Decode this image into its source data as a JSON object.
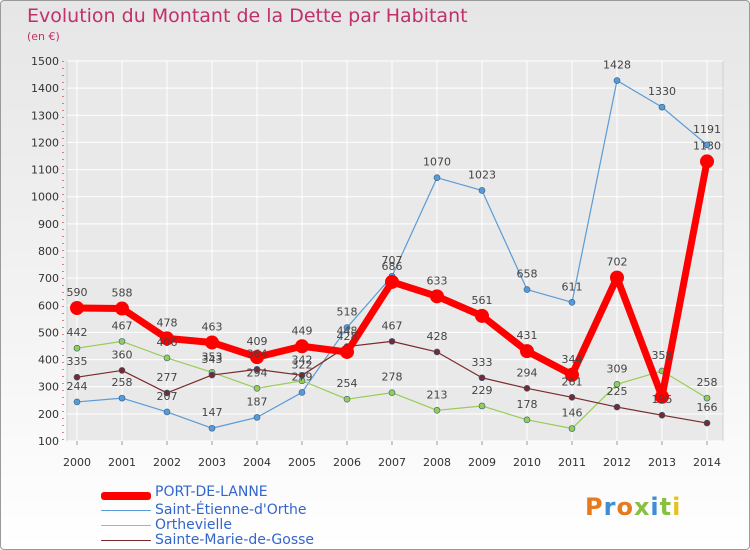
{
  "title": "Evolution du Montant de la Dette par Habitant",
  "subtitle": "(en €)",
  "logo": "Proxiti",
  "colors": {
    "title": "#c0306a",
    "legend_text": "#3366cc",
    "axis_text": "#333333",
    "grid": "#ffffff"
  },
  "chart_data": {
    "type": "line",
    "title": "Evolution du Montant de la Dette par Habitant",
    "ylabel": "(en €)",
    "xlabel": "",
    "x": [
      "2000",
      "2001",
      "2002",
      "2003",
      "2004",
      "2005",
      "2006",
      "2007",
      "2008",
      "2009",
      "2010",
      "2011",
      "2012",
      "2013",
      "2014"
    ],
    "ylim": [
      100,
      1500
    ],
    "yticks": [
      100,
      200,
      300,
      400,
      500,
      600,
      700,
      800,
      900,
      1000,
      1100,
      1200,
      1300,
      1400,
      1500
    ],
    "grid": true,
    "legend_position": "bottom-left",
    "series": [
      {
        "name": "PORT-DE-LANNE",
        "color": "#ff0000",
        "values": [
          590,
          588,
          478,
          463,
          409,
          449,
          428,
          686,
          633,
          561,
          431,
          344,
          702,
          263,
          1130
        ],
        "labels": [
          "590",
          "588",
          "478",
          "463",
          "409",
          "449",
          "428",
          "686",
          "633",
          "561",
          "431",
          "344",
          "702",
          "",
          "1130"
        ]
      },
      {
        "name": "Saint-Étienne-d'Orthe",
        "color": "#5b9bd5",
        "values": [
          244,
          258,
          207,
          147,
          187,
          279,
          518,
          707,
          1070,
          1023,
          658,
          611,
          1428,
          1330,
          1191
        ],
        "labels": [
          "244",
          "258",
          "207",
          "147",
          "187",
          "279",
          "518",
          "707",
          "1070",
          "1023",
          "658",
          "611",
          "1428",
          "1330",
          "1191"
        ]
      },
      {
        "name": "Orthevielle",
        "color": "#99cc55",
        "values": [
          442,
          467,
          406,
          353,
          294,
          322,
          254,
          278,
          213,
          229,
          178,
          146,
          309,
          358,
          258
        ],
        "labels": [
          "442",
          "467",
          "406",
          "353",
          "294",
          "322",
          "254",
          "278",
          "213",
          "229",
          "178",
          "146",
          "309",
          "358",
          "258"
        ]
      },
      {
        "name": "Sainte-Marie-de-Gosse",
        "color": "#7a2a2a",
        "values": [
          335,
          360,
          277,
          343,
          364,
          342,
          448,
          467,
          428,
          333,
          294,
          261,
          225,
          195,
          166
        ],
        "labels": [
          "335",
          "360",
          "277",
          "343",
          "364",
          "342",
          "448",
          "467",
          "428",
          "333",
          "294",
          "261",
          "225",
          "195",
          "166"
        ]
      }
    ]
  }
}
